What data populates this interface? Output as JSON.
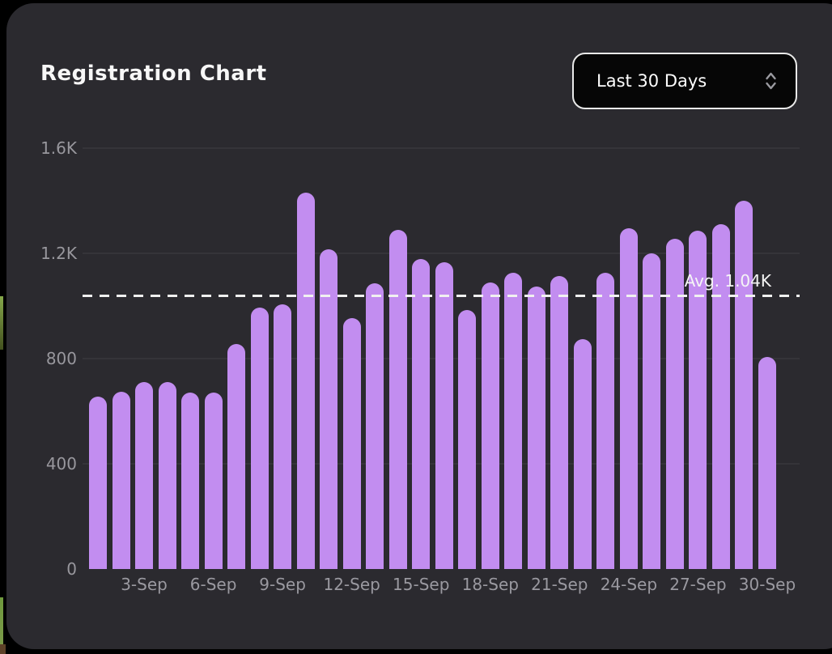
{
  "header": {
    "title": "Registration Chart",
    "range_selector": {
      "value": "Last 30 Days",
      "control": "dropdown",
      "icon": "chevron-up-down-icon"
    }
  },
  "chart_data": {
    "type": "bar",
    "title": "Registration Chart",
    "x": [
      "1-Sep",
      "2-Sep",
      "3-Sep",
      "4-Sep",
      "5-Sep",
      "6-Sep",
      "7-Sep",
      "8-Sep",
      "9-Sep",
      "10-Sep",
      "11-Sep",
      "12-Sep",
      "13-Sep",
      "14-Sep",
      "15-Sep",
      "16-Sep",
      "17-Sep",
      "18-Sep",
      "19-Sep",
      "20-Sep",
      "21-Sep",
      "22-Sep",
      "23-Sep",
      "24-Sep",
      "25-Sep",
      "26-Sep",
      "27-Sep",
      "28-Sep",
      "29-Sep",
      "30-Sep"
    ],
    "values": [
      655,
      675,
      710,
      710,
      670,
      670,
      855,
      995,
      1005,
      1430,
      1215,
      955,
      1085,
      1290,
      1180,
      1165,
      985,
      1090,
      1125,
      1075,
      1115,
      875,
      1125,
      1295,
      1200,
      1255,
      1285,
      1310,
      1400,
      805
    ],
    "x_tick_labels": [
      "3-Sep",
      "6-Sep",
      "9-Sep",
      "12-Sep",
      "15-Sep",
      "18-Sep",
      "21-Sep",
      "24-Sep",
      "27-Sep",
      "30-Sep"
    ],
    "y_tick_labels": [
      "0",
      "400",
      "800",
      "1.2K",
      "1.6K"
    ],
    "y_tick_values": [
      0,
      400,
      800,
      1200,
      1600
    ],
    "ylim": [
      0,
      1600
    ],
    "average": {
      "value": 1040,
      "label": "Avg. 1.04K"
    },
    "colors": {
      "bar": "#c28df0",
      "avg_line": "#f0f0f0",
      "axis_label": "#98979d",
      "grid": "rgba(255,255,255,0.05)",
      "card_background": "#2b2a2f",
      "page_background": "#000000",
      "dropdown_border": "#e9e9e9"
    },
    "grid": "horizontal-faint",
    "legend": "none"
  }
}
